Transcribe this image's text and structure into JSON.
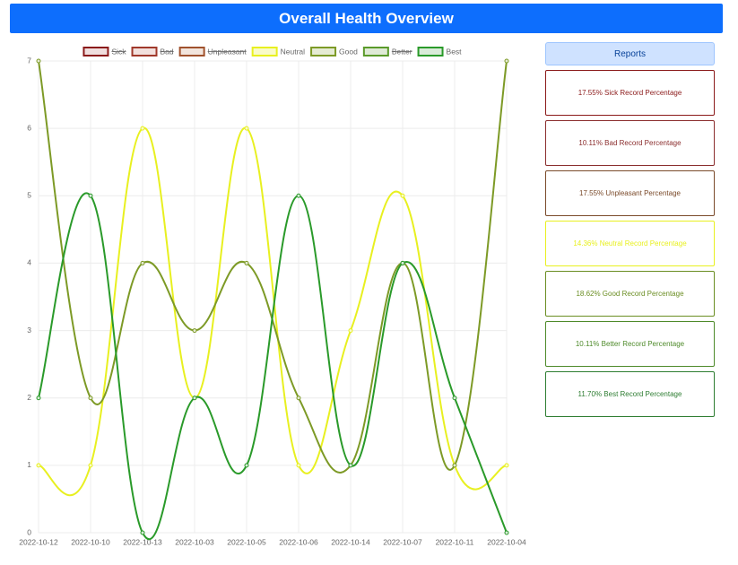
{
  "header": {
    "title": "Overall Health Overview"
  },
  "chart_data": {
    "type": "line",
    "categories": [
      "2022-10-12",
      "2022-10-10",
      "2022-10-13",
      "2022-10-03",
      "2022-10-05",
      "2022-10-06",
      "2022-10-14",
      "2022-10-07",
      "2022-10-11",
      "2022-10-04"
    ],
    "ylim": [
      0,
      7
    ],
    "yticks": [
      0,
      1,
      2,
      3,
      4,
      5,
      6,
      7
    ],
    "grid": true,
    "legend": "top",
    "series": [
      {
        "name": "Sick",
        "color": "#8b1a1a",
        "fill": "#f0dede",
        "hidden": true
      },
      {
        "name": "Bad",
        "color": "#a0392b",
        "fill": "#f2e0dd",
        "hidden": true
      },
      {
        "name": "Unpleasant",
        "color": "#a0522d",
        "fill": "#f2e5dd",
        "hidden": true
      },
      {
        "name": "Neutral",
        "color": "#e8f020",
        "fill": "#f9fbc8",
        "values": [
          1,
          1,
          6,
          2,
          6,
          1,
          3,
          5,
          1,
          1
        ]
      },
      {
        "name": "Good",
        "color": "#7d9a26",
        "fill": "#e5ebd3",
        "values": [
          7,
          2,
          4,
          3,
          4,
          2,
          1,
          4,
          1,
          7
        ]
      },
      {
        "name": "Better",
        "color": "#5a9a2a",
        "fill": "#dfead6",
        "hidden": true
      },
      {
        "name": "Best",
        "color": "#2a9a2a",
        "fill": "#d9ebd9",
        "values": [
          2,
          5,
          0,
          2,
          1,
          5,
          1,
          4,
          2,
          0
        ]
      }
    ]
  },
  "reports": {
    "title": "Reports",
    "items": [
      {
        "text": "17.55% Sick Record Percentage",
        "color": "#8b1a1a"
      },
      {
        "text": "10.11% Bad Record Percentage",
        "color": "#8b2e2e"
      },
      {
        "text": "17.55% Unpleasant Percentage",
        "color": "#7a4a2a"
      },
      {
        "text": "14.36% Neutral Record Percentage",
        "color": "#e8f020"
      },
      {
        "text": "18.62% Good Record Percentage",
        "color": "#6b8e23"
      },
      {
        "text": "10.11% Better Record Percentage",
        "color": "#4e8a2a"
      },
      {
        "text": "11.70% Best Record Percentage",
        "color": "#2e7d32"
      }
    ]
  }
}
